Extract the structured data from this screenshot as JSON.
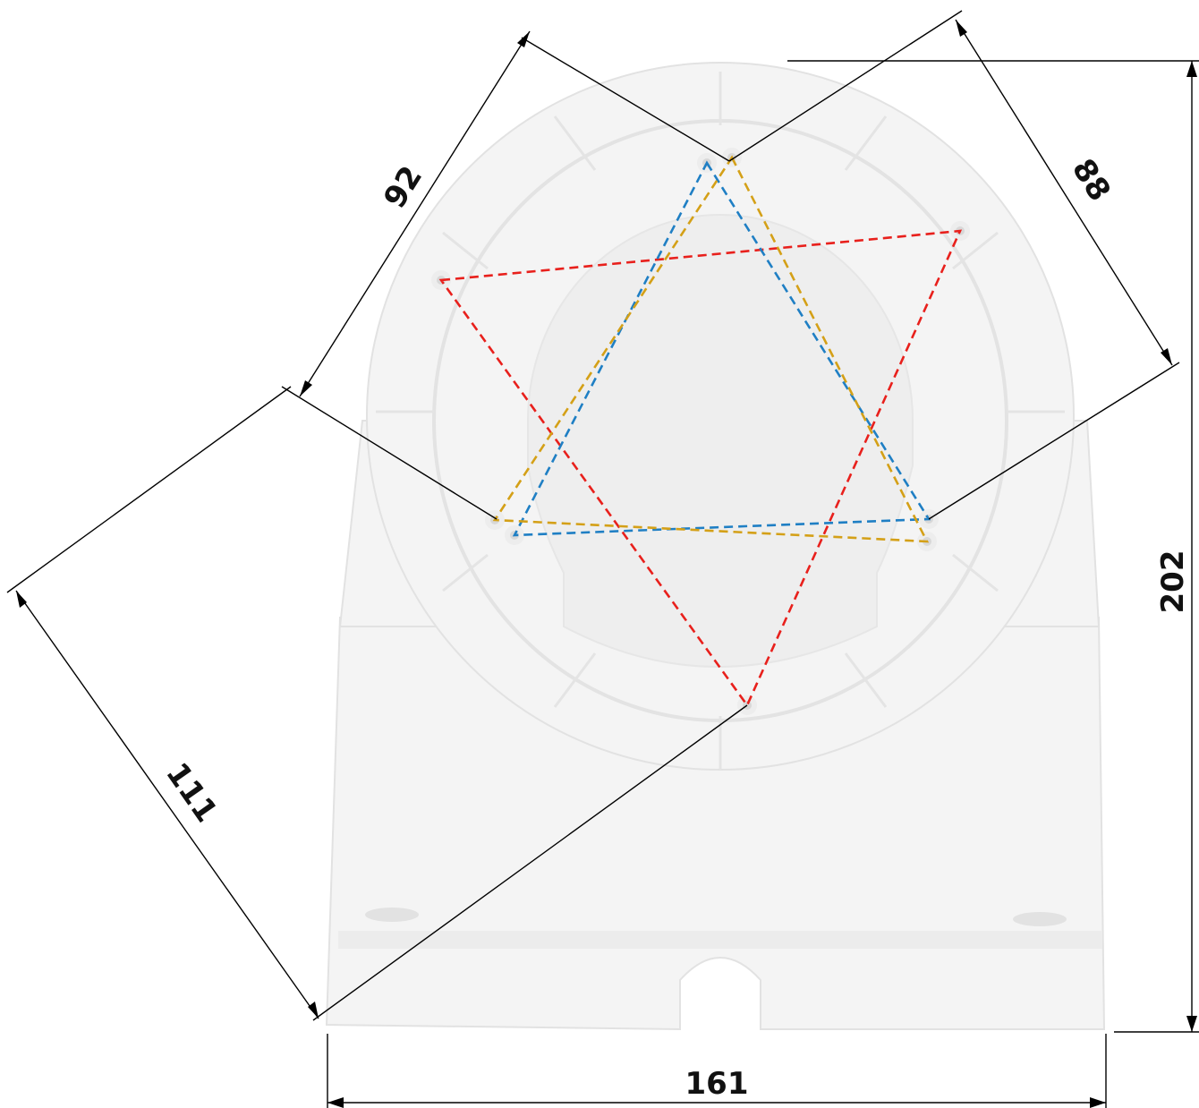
{
  "dimensions": {
    "width_bottom": "161",
    "height_right": "202",
    "diagonal_left": "111",
    "hole_spacing_left": "92",
    "hole_spacing_right": "88"
  },
  "hole_patterns": [
    {
      "color": "#e8201c"
    },
    {
      "color": "#1f7fc4"
    },
    {
      "color": "#d4a017"
    }
  ]
}
